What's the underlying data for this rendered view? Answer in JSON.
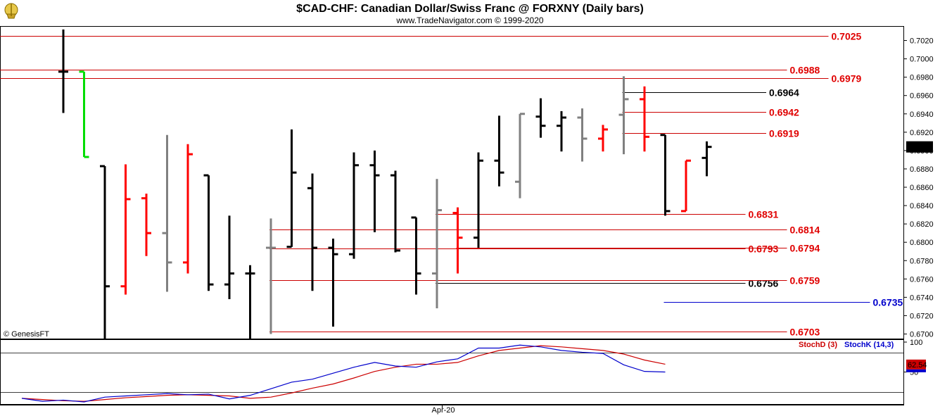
{
  "header": {
    "title": "$CAD-CHF:  Canadian Dollar/Swiss Franc @ FORXNY  (Daily bars)",
    "subtitle": "www.TradeNavigator.com © 1999-2020",
    "logo_icon": "ship-wheel-logo-icon"
  },
  "copyright": "© GenesisFT",
  "x_axis": {
    "month_label": "Apr-20"
  },
  "chart_data": [
    {
      "type": "ohlc",
      "title": "$CAD-CHF:  Canadian Dollar/Swiss Franc @ FORXNY  (Daily bars)",
      "ylim": [
        0.6695,
        0.7035
      ],
      "y_ticks": [
        "0.7020",
        "0.7000",
        "0.6980",
        "0.6960",
        "0.6940",
        "0.6920",
        "0.6900",
        "0.6880",
        "0.6860",
        "0.6840",
        "0.6820",
        "0.6800",
        "0.6780",
        "0.6760",
        "0.6740",
        "0.6720",
        "0.6700"
      ],
      "last_price": "0.6904",
      "colors": {
        "up": "#000000",
        "down": "#ff0000",
        "neutral": "#808080",
        "highlight": "#00dd00",
        "level": "#cc0000",
        "blue_level": "#0000cc"
      },
      "bars": [
        {
          "o": 0.6986,
          "h": 0.7032,
          "l": 0.6941,
          "c": 0.6986,
          "color": "black"
        },
        {
          "o": 0.6986,
          "h": 0.6986,
          "l": 0.6893,
          "c": 0.6893,
          "color": "green"
        },
        {
          "o": 0.6883,
          "h": 0.6883,
          "l": 0.6695,
          "c": 0.6752,
          "color": "black"
        },
        {
          "o": 0.6752,
          "h": 0.6885,
          "l": 0.6743,
          "c": 0.6847,
          "color": "red"
        },
        {
          "o": 0.6848,
          "h": 0.6853,
          "l": 0.6785,
          "c": 0.681,
          "color": "red"
        },
        {
          "o": 0.681,
          "h": 0.6917,
          "l": 0.6746,
          "c": 0.6778,
          "color": "gray"
        },
        {
          "o": 0.6778,
          "h": 0.6907,
          "l": 0.6766,
          "c": 0.6896,
          "color": "red"
        },
        {
          "o": 0.6873,
          "h": 0.6873,
          "l": 0.6747,
          "c": 0.6754,
          "color": "black"
        },
        {
          "o": 0.6754,
          "h": 0.6829,
          "l": 0.6738,
          "c": 0.6766,
          "color": "black"
        },
        {
          "o": 0.6766,
          "h": 0.6775,
          "l": 0.6695,
          "c": 0.6766,
          "color": "black"
        },
        {
          "o": 0.6794,
          "h": 0.6826,
          "l": 0.67,
          "c": 0.6794,
          "color": "gray"
        },
        {
          "o": 0.6795,
          "h": 0.6923,
          "l": 0.6795,
          "c": 0.6876,
          "color": "black"
        },
        {
          "o": 0.6859,
          "h": 0.6875,
          "l": 0.6747,
          "c": 0.6794,
          "color": "black"
        },
        {
          "o": 0.6794,
          "h": 0.6804,
          "l": 0.6708,
          "c": 0.6787,
          "color": "black"
        },
        {
          "o": 0.6787,
          "h": 0.6898,
          "l": 0.6782,
          "c": 0.6884,
          "color": "black"
        },
        {
          "o": 0.6884,
          "h": 0.69,
          "l": 0.6811,
          "c": 0.6873,
          "color": "black"
        },
        {
          "o": 0.6873,
          "h": 0.6878,
          "l": 0.6789,
          "c": 0.6791,
          "color": "black"
        },
        {
          "o": 0.6827,
          "h": 0.6827,
          "l": 0.6743,
          "c": 0.6766,
          "color": "black"
        },
        {
          "o": 0.6766,
          "h": 0.6869,
          "l": 0.6728,
          "c": 0.6835,
          "color": "gray"
        },
        {
          "o": 0.6832,
          "h": 0.6838,
          "l": 0.6766,
          "c": 0.6805,
          "color": "red"
        },
        {
          "o": 0.6805,
          "h": 0.6898,
          "l": 0.6794,
          "c": 0.6889,
          "color": "black"
        },
        {
          "o": 0.6889,
          "h": 0.6938,
          "l": 0.6861,
          "c": 0.6876,
          "color": "black"
        },
        {
          "o": 0.6866,
          "h": 0.694,
          "l": 0.6848,
          "c": 0.694,
          "color": "gray"
        },
        {
          "o": 0.6937,
          "h": 0.6957,
          "l": 0.6914,
          "c": 0.6927,
          "color": "black"
        },
        {
          "o": 0.6927,
          "h": 0.6943,
          "l": 0.6899,
          "c": 0.6936,
          "color": "black"
        },
        {
          "o": 0.6936,
          "h": 0.6946,
          "l": 0.6888,
          "c": 0.6913,
          "color": "gray"
        },
        {
          "o": 0.6913,
          "h": 0.6928,
          "l": 0.6899,
          "c": 0.6923,
          "color": "red"
        },
        {
          "o": 0.6939,
          "h": 0.6981,
          "l": 0.6896,
          "c": 0.6956,
          "color": "gray"
        },
        {
          "o": 0.6956,
          "h": 0.697,
          "l": 0.6899,
          "c": 0.6915,
          "color": "red"
        },
        {
          "o": 0.6917,
          "h": 0.6917,
          "l": 0.6829,
          "c": 0.6834,
          "color": "black"
        },
        {
          "o": 0.6834,
          "h": 0.6889,
          "l": 0.6834,
          "c": 0.6889,
          "color": "red"
        },
        {
          "o": 0.6892,
          "h": 0.691,
          "l": 0.6872,
          "c": 0.6904,
          "color": "black"
        }
      ],
      "levels": [
        {
          "value": 0.7025,
          "label": "0.7025",
          "color": "red",
          "x0_index": 0,
          "label_index": 37
        },
        {
          "value": 0.6988,
          "label": "0.6988",
          "color": "red",
          "x0_index": 0,
          "label_index": 35
        },
        {
          "value": 0.6979,
          "label": "0.6979",
          "color": "red",
          "x0_index": 0,
          "label_index": 37
        },
        {
          "value": 0.6964,
          "label": "0.6964",
          "color": "black",
          "x0_index": 27,
          "label_index": 34
        },
        {
          "value": 0.6942,
          "label": "0.6942",
          "color": "red",
          "x0_index": 27,
          "label_index": 34
        },
        {
          "value": 0.6919,
          "label": "0.6919",
          "color": "red",
          "x0_index": 27,
          "label_index": 34
        },
        {
          "value": 0.6831,
          "label": "0.6831",
          "color": "red",
          "x0_index": 18,
          "label_index": 33
        },
        {
          "value": 0.6814,
          "label": "0.6814",
          "color": "red",
          "x0_index": 10,
          "label_index": 35
        },
        {
          "value": 0.6793,
          "label": "0.6793",
          "color": "red",
          "x0_index": 10,
          "label_index": 33
        },
        {
          "value": 0.6794,
          "label": "0.6794",
          "color": "red",
          "x0_index": 19,
          "label_index": 35
        },
        {
          "value": 0.6756,
          "label": "0.6756",
          "color": "black",
          "x0_index": 18,
          "label_index": 33
        },
        {
          "value": 0.6759,
          "label": "0.6759",
          "color": "red",
          "x0_index": 10,
          "label_index": 35
        },
        {
          "value": 0.6735,
          "label": "0.6735",
          "color": "blue",
          "x0_index": 29,
          "label_index": 39
        },
        {
          "value": 0.6703,
          "label": "0.6703",
          "color": "red",
          "x0_index": 10,
          "label_index": 35
        }
      ]
    },
    {
      "type": "line",
      "title": "",
      "ylim": [
        0,
        100
      ],
      "y_ticks": [
        "100",
        "50"
      ],
      "legend": [
        "StochD (3)",
        "StochK (14,3)"
      ],
      "last_value": "62.54",
      "series": [
        {
          "name": "StochD (3)",
          "color": "#cc0000",
          "values": [
            6,
            4,
            2,
            1,
            4,
            7,
            9,
            11,
            12,
            11,
            10,
            6,
            8,
            15,
            23,
            30,
            40,
            51,
            58,
            63,
            63,
            66,
            77,
            86,
            90,
            94,
            92,
            89,
            86,
            80,
            70,
            63
          ]
        },
        {
          "name": "StochK (14,3)",
          "color": "#0000cc",
          "values": [
            6,
            1,
            3,
            0,
            8,
            10,
            12,
            14,
            12,
            13,
            5,
            11,
            22,
            33,
            38,
            48,
            58,
            66,
            60,
            58,
            67,
            72,
            90,
            90,
            95,
            92,
            86,
            83,
            81,
            62,
            51,
            50
          ]
        }
      ]
    }
  ]
}
